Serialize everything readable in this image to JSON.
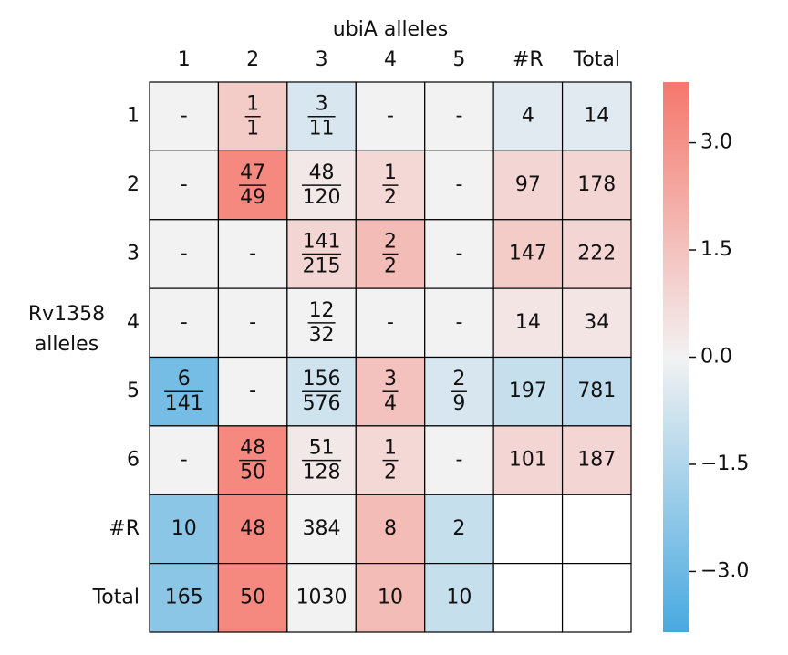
{
  "chart_data": {
    "type": "heatmap",
    "x_label": "ubiA alleles",
    "y_label": [
      "Rv1358",
      "alleles"
    ],
    "columns": [
      "1",
      "2",
      "3",
      "4",
      "5",
      "#R",
      "Total"
    ],
    "rows": [
      "1",
      "2",
      "3",
      "4",
      "5",
      "6",
      "#R",
      "Total"
    ],
    "cmap": [
      "#48a9e0",
      "#f2f2f2",
      "#f5776c"
    ],
    "clim": [
      -3.85,
      3.85
    ],
    "cticks": [
      {
        "value": 3,
        "label": "3.0"
      },
      {
        "value": 1.5,
        "label": "1.5"
      },
      {
        "value": 0,
        "label": "0.0"
      },
      {
        "value": -1.5,
        "label": "−1.5"
      },
      {
        "value": -3,
        "label": "−3.0"
      }
    ],
    "cells": [
      [
        {
          "text": "-"
        },
        {
          "num": 1,
          "den": 1,
          "value": 1.2
        },
        {
          "num": 3,
          "den": 11,
          "value": -0.6
        },
        {
          "text": "-"
        },
        {
          "text": "-"
        },
        {
          "count": 4,
          "value": -0.4
        },
        {
          "count": 14,
          "value": -0.4
        }
      ],
      [
        {
          "text": "-"
        },
        {
          "num": 47,
          "den": 49,
          "value": 3.3
        },
        {
          "num": 48,
          "den": 120,
          "value": 0.3
        },
        {
          "num": 1,
          "den": 2,
          "value": 0.8
        },
        {
          "text": "-"
        },
        {
          "count": 97,
          "value": 0.9
        },
        {
          "count": 178,
          "value": 0.9
        }
      ],
      [
        {
          "text": "-"
        },
        {
          "text": "-"
        },
        {
          "num": 141,
          "den": 215,
          "value": 0.9
        },
        {
          "num": 2,
          "den": 2,
          "value": 1.7
        },
        {
          "text": "-"
        },
        {
          "count": 147,
          "value": 1.2
        },
        {
          "count": 222,
          "value": 0.9
        }
      ],
      [
        {
          "text": "-"
        },
        {
          "text": "-"
        },
        {
          "num": 12,
          "den": 32,
          "value": 0
        },
        {
          "text": "-"
        },
        {
          "text": "-"
        },
        {
          "count": 14,
          "value": 0.4
        },
        {
          "count": 34,
          "value": 0.4
        }
      ],
      [
        {
          "num": 6,
          "den": 141,
          "value": -2.8
        },
        {
          "text": "-"
        },
        {
          "num": 156,
          "den": 576,
          "value": -0.8
        },
        {
          "num": 3,
          "den": 4,
          "value": 1.5
        },
        {
          "num": 2,
          "den": 9,
          "value": -0.6
        },
        {
          "count": 197,
          "value": -1.0
        },
        {
          "count": 781,
          "value": -1.2
        }
      ],
      [
        {
          "text": "-"
        },
        {
          "num": 48,
          "den": 50,
          "value": 3.3
        },
        {
          "num": 51,
          "den": 128,
          "value": 0.3
        },
        {
          "num": 1,
          "den": 2,
          "value": 0.8
        },
        {
          "text": "-"
        },
        {
          "count": 101,
          "value": 0.9
        },
        {
          "count": 187,
          "value": 0.9
        }
      ],
      [
        {
          "count": 10,
          "value": -2.3
        },
        {
          "count": 48,
          "value": 3.3
        },
        {
          "count": 384,
          "value": 0
        },
        {
          "count": 8,
          "value": 1.7
        },
        {
          "count": 2,
          "value": -1.0
        },
        {},
        {}
      ],
      [
        {
          "count": 165,
          "value": -2.3
        },
        {
          "count": 50,
          "value": 3.3
        },
        {
          "count": 1030,
          "value": 0
        },
        {
          "count": 10,
          "value": 1.7
        },
        {
          "count": 10,
          "value": -1.0
        },
        {},
        {}
      ]
    ]
  }
}
